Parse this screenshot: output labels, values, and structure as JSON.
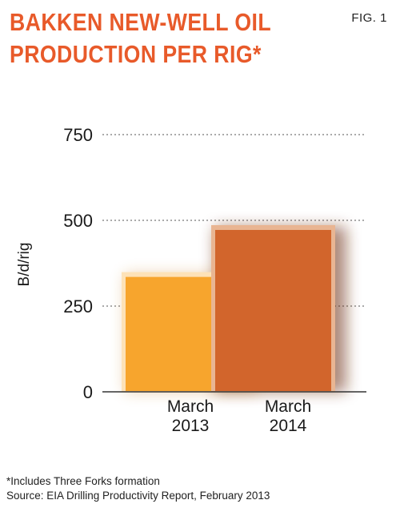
{
  "header": {
    "title": "BAKKEN NEW-WELL OIL PRODUCTION PER RIG*",
    "fig_label": "FIG. 1"
  },
  "footnotes": [
    "*Includes Three Forks formation",
    "Source: EIA Drilling Productivity Report, February 2013"
  ],
  "colors": {
    "title": "#e85a2a",
    "bar_2013": "#f7a52d",
    "bar_2014": "#d2652c"
  },
  "chart_data": {
    "type": "bar",
    "title": "BAKKEN NEW-WELL OIL PRODUCTION PER RIG*",
    "ylabel": "B/d/rig",
    "xlabel": "",
    "categories": [
      [
        "March",
        "2013"
      ],
      [
        "March",
        "2014"
      ]
    ],
    "values": [
      335,
      472
    ],
    "ylim": [
      0,
      750
    ],
    "yticks": [
      0,
      250,
      500,
      750
    ],
    "ytick_labels": [
      "0",
      "250",
      "500",
      "750"
    ],
    "grid": true
  }
}
